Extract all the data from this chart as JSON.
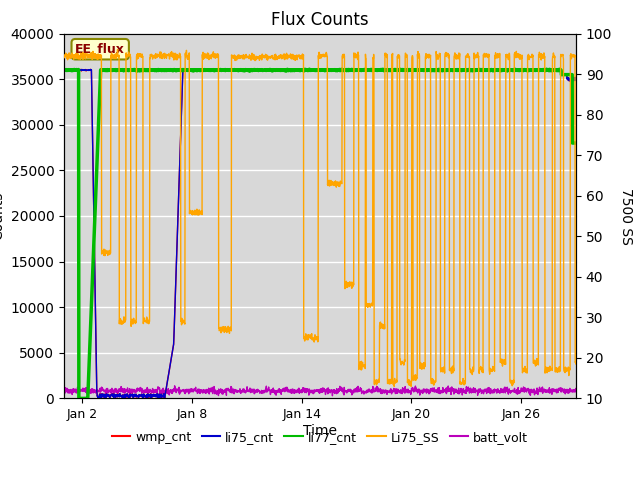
{
  "title": "Flux Counts",
  "xlabel": "Time",
  "ylabel_left": "Counts",
  "ylabel_right": "7500 SS",
  "annotation": "EE_flux",
  "plot_background": "#d8d8d8",
  "ylim_left": [
    0,
    40000
  ],
  "ylim_right": [
    10,
    100
  ],
  "yticks_left": [
    0,
    5000,
    10000,
    15000,
    20000,
    25000,
    30000,
    35000,
    40000
  ],
  "yticks_right": [
    10,
    20,
    30,
    40,
    50,
    60,
    70,
    80,
    90,
    100
  ],
  "series": {
    "wmp_cnt": {
      "color": "#ff0000",
      "linewidth": 1.0
    },
    "li75_cnt": {
      "color": "#0000cc",
      "linewidth": 1.0
    },
    "li77_cnt": {
      "color": "#00bb00",
      "linewidth": 2.5
    },
    "Li75_SS": {
      "color": "#ffa500",
      "linewidth": 1.0
    },
    "batt_volt": {
      "color": "#bb00bb",
      "linewidth": 1.0
    }
  },
  "x_tick_labels": [
    "Jan 2",
    "Jan 8",
    "Jan 14",
    "Jan 20",
    "Jan 26"
  ],
  "x_tick_positions": [
    2,
    8,
    14,
    20,
    26
  ],
  "xlim": [
    1,
    29
  ],
  "seed": 42
}
